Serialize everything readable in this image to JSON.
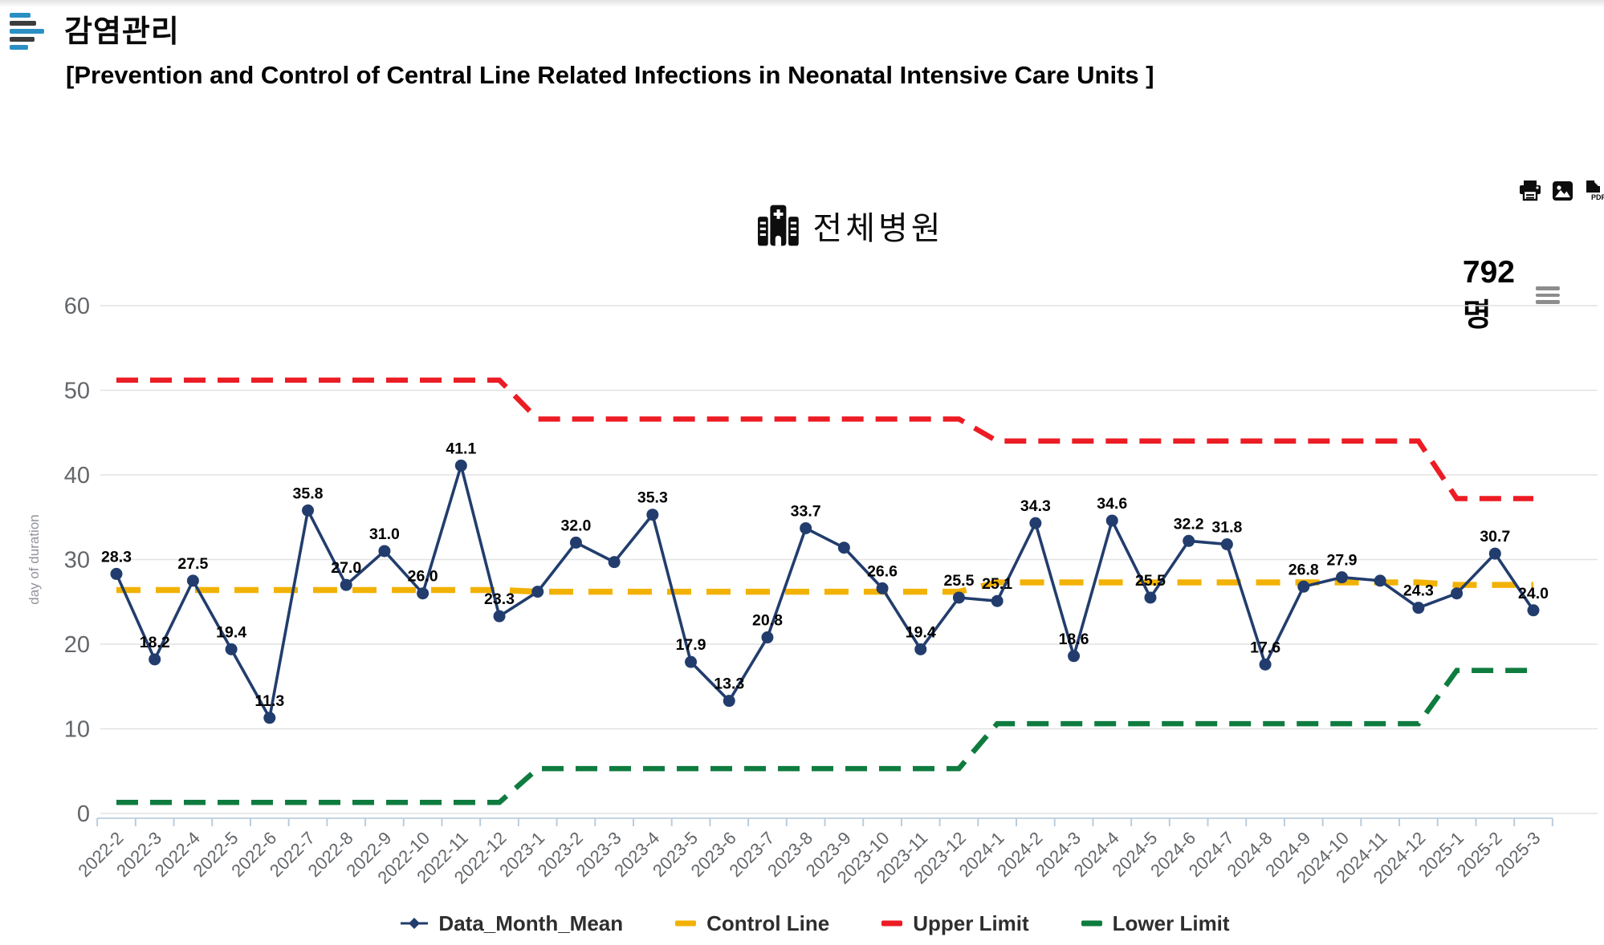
{
  "header": {
    "title": "감염관리",
    "subtitle": "[Prevention and Control of Central Line Related Infections in Neonatal Intensive Care Units ]",
    "menu_icon": "list-lines-icon",
    "menu_icon_colors": {
      "accent": "#2b8fc4",
      "dark": "#3c3c3c"
    }
  },
  "toolbar": {
    "export_icons": [
      "print",
      "image",
      "pdf"
    ]
  },
  "chart": {
    "title": "전체병원",
    "title_icon": "hospital-icon",
    "count_label": "792명",
    "context_menu_icon": "hamburger-icon"
  },
  "chart_data": {
    "type": "line",
    "title": "전체병원",
    "xlabel": "",
    "ylabel": "day of duration",
    "ylim": [
      0,
      60
    ],
    "yticks": [
      0,
      10,
      20,
      30,
      40,
      50,
      60
    ],
    "grid": true,
    "legend_position": "bottom",
    "categories": [
      "2022-2",
      "2022-3",
      "2022-4",
      "2022-5",
      "2022-6",
      "2022-7",
      "2022-8",
      "2022-9",
      "2022-10",
      "2022-11",
      "2022-12",
      "2023-1",
      "2023-2",
      "2023-3",
      "2023-4",
      "2023-5",
      "2023-6",
      "2023-7",
      "2023-8",
      "2023-9",
      "2023-10",
      "2023-11",
      "2023-12",
      "2024-1",
      "2024-2",
      "2024-3",
      "2024-4",
      "2024-5",
      "2024-6",
      "2024-7",
      "2024-8",
      "2024-9",
      "2024-10",
      "2024-11",
      "2024-12",
      "2025-1",
      "2025-2",
      "2025-3"
    ],
    "series": [
      {
        "name": "Data_Month_Mean",
        "type": "line-markers",
        "color": "#223d6d",
        "values": [
          28.3,
          18.2,
          27.5,
          19.4,
          11.3,
          35.8,
          27.0,
          31.0,
          26.0,
          41.1,
          23.3,
          26.2,
          32.0,
          29.7,
          35.3,
          17.9,
          13.3,
          20.8,
          33.7,
          31.4,
          26.6,
          19.4,
          25.5,
          25.1,
          34.3,
          18.6,
          34.6,
          25.5,
          32.2,
          31.8,
          17.6,
          26.8,
          27.9,
          27.5,
          24.3,
          26.0,
          30.7,
          24.0
        ],
        "point_labels": [
          "28.3",
          "18.2",
          "27.5",
          "19.4",
          "11.3",
          "35.8",
          "27.0",
          "31.0",
          "26.0",
          "41.1",
          "23.3",
          null,
          "32.0",
          null,
          "35.3",
          "17.9",
          "13.3",
          "20.8",
          "33.7",
          null,
          "26.6",
          "19.4",
          "25.5",
          "25.1",
          "34.3",
          "18.6",
          "34.6",
          "25.5",
          "32.2",
          "31.8",
          "17.6",
          "26.8",
          "27.9",
          null,
          "24.3",
          null,
          "30.7",
          "24.0"
        ]
      },
      {
        "name": "Control Line",
        "type": "step-dashed",
        "color": "#f2b205",
        "values_by_year": {
          "2022": 26.4,
          "2023": 26.2,
          "2024": 27.3,
          "2025": 27.0
        }
      },
      {
        "name": "Upper Limit",
        "type": "step-dashed",
        "color": "#ec1c24",
        "values_by_year": {
          "2022": 51.2,
          "2023": 46.6,
          "2024": 44.0,
          "2025": 37.2
        }
      },
      {
        "name": "Lower Limit",
        "type": "step-dashed",
        "color": "#0f7c3f",
        "values_by_year": {
          "2022": 1.3,
          "2023": 5.3,
          "2024": 10.6,
          "2025": 16.9
        }
      }
    ],
    "legend_items": [
      {
        "label": "Data_Month_Mean",
        "marker": "line-dot",
        "color": "#223d6d"
      },
      {
        "label": "Control Line",
        "marker": "dash",
        "color": "#f2b205"
      },
      {
        "label": "Upper Limit",
        "marker": "dash",
        "color": "#ec1c24"
      },
      {
        "label": "Lower Limit",
        "marker": "dash",
        "color": "#0f7c3f"
      }
    ],
    "axis_colors": {
      "grid": "#e2e2e2",
      "axis_line": "#c6d4e0",
      "tick": "#b9cdde",
      "tick_label": "#63666a",
      "ylabel": "#909399",
      "point_label": "#000000"
    }
  }
}
